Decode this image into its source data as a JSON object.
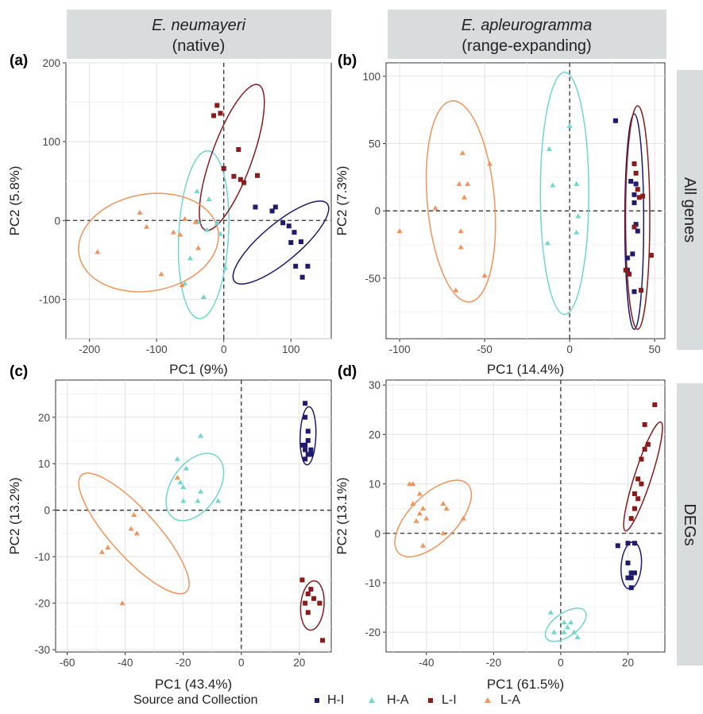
{
  "strips": {
    "col1": {
      "species": "E. neumayeri",
      "note": "(native)"
    },
    "col2": {
      "species": "E. apleurogramma",
      "note": "(range-expanding)"
    },
    "row1": "All genes",
    "row2": "DEGs"
  },
  "legend": {
    "title": "Source and Collection",
    "items": [
      {
        "label": "H-I",
        "color": "#1f1a6e",
        "shape": "square"
      },
      {
        "label": "H-A",
        "color": "#6fd6d0",
        "shape": "triangle"
      },
      {
        "label": "L-I",
        "color": "#8b1a1a",
        "shape": "square"
      },
      {
        "label": "L-A",
        "color": "#f2935a",
        "shape": "triangle"
      }
    ]
  },
  "colors": {
    "H-I": "#1f1a6e",
    "H-A": "#6fd6d0",
    "L-I": "#8b1a1a",
    "L-A": "#f2935a",
    "panel_bg": "#ebebeb",
    "strip_bg": "#d9dcdc"
  },
  "chart_data": [
    {
      "type": "scatter",
      "panel_label": "(a)",
      "xlabel": "PC1 (9%)",
      "ylabel": "PC2 (5.8%)",
      "xlim": [
        -235,
        160
      ],
      "ylim": [
        -150,
        200
      ],
      "xticks": [
        -200,
        -100,
        0,
        100
      ],
      "yticks": [
        -100,
        0,
        100,
        200
      ],
      "grid": true,
      "series": [
        {
          "name": "H-I",
          "points": [
            [
              47,
              17
            ],
            [
              72,
              12
            ],
            [
              77,
              17
            ],
            [
              97,
              -7
            ],
            [
              105,
              -15
            ],
            [
              88,
              -3
            ],
            [
              100,
              -28
            ],
            [
              115,
              -27
            ],
            [
              107,
              -58
            ],
            [
              125,
              -58
            ],
            [
              117,
              -72
            ]
          ]
        },
        {
          "name": "H-A",
          "points": [
            [
              -22,
              27
            ],
            [
              -40,
              37
            ],
            [
              -38,
              -2
            ],
            [
              -25,
              -12
            ],
            [
              -5,
              -17
            ],
            [
              -50,
              -48
            ],
            [
              -30,
              -97
            ],
            [
              -58,
              -80
            ],
            [
              2,
              -60
            ],
            [
              -10,
              -3
            ]
          ]
        },
        {
          "name": "L-I",
          "points": [
            [
              -15,
              133
            ],
            [
              -10,
              146
            ],
            [
              -5,
              136
            ],
            [
              22,
              90
            ],
            [
              0,
              66
            ],
            [
              15,
              56
            ],
            [
              30,
              48
            ],
            [
              25,
              52
            ],
            [
              50,
              57
            ]
          ]
        },
        {
          "name": "L-A",
          "points": [
            [
              -188,
              -40
            ],
            [
              -125,
              10
            ],
            [
              -115,
              -8
            ],
            [
              -93,
              -68
            ],
            [
              -65,
              -18
            ],
            [
              -62,
              -82
            ],
            [
              -58,
              2
            ],
            [
              -42,
              -2
            ],
            [
              -38,
              -35
            ],
            [
              -75,
              -15
            ]
          ]
        }
      ],
      "ellipses": [
        {
          "name": "H-I",
          "cx": 85,
          "cy": -28,
          "rx": 90,
          "ry": 28,
          "angle": -40
        },
        {
          "name": "H-A",
          "cx": -30,
          "cy": -18,
          "rx": 125,
          "ry": 37,
          "angle": -87
        },
        {
          "name": "L-I",
          "cx": 12,
          "cy": 80,
          "rx": 115,
          "ry": 30,
          "angle": -70
        },
        {
          "name": "L-A",
          "cx": -112,
          "cy": -28,
          "rx": 105,
          "ry": 72,
          "angle": -10
        }
      ]
    },
    {
      "type": "scatter",
      "panel_label": "(b)",
      "xlabel": "PC1 (14.4%)",
      "ylabel": "PC2 (7.3%)",
      "xlim": [
        -108,
        56
      ],
      "ylim": [
        -95,
        110
      ],
      "xticks": [
        -100,
        -50,
        0,
        50
      ],
      "yticks": [
        -50,
        0,
        50,
        100
      ],
      "grid": true,
      "series": [
        {
          "name": "H-I",
          "points": [
            [
              27,
              67
            ],
            [
              36,
              22
            ],
            [
              39,
              20
            ],
            [
              38,
              12
            ],
            [
              38,
              6
            ],
            [
              39,
              -10
            ],
            [
              40,
              -15
            ],
            [
              37,
              -32
            ],
            [
              34,
              -35
            ],
            [
              34,
              -44
            ],
            [
              38,
              -60
            ]
          ]
        },
        {
          "name": "H-A",
          "points": [
            [
              -12,
              46
            ],
            [
              -10,
              19
            ],
            [
              0,
              63
            ],
            [
              4,
              20
            ],
            [
              5,
              -4
            ],
            [
              4,
              -16
            ],
            [
              -13,
              -24
            ]
          ]
        },
        {
          "name": "L-I",
          "points": [
            [
              38,
              35
            ],
            [
              39,
              28
            ],
            [
              40,
              16
            ],
            [
              41,
              10
            ],
            [
              43,
              11
            ],
            [
              38,
              -12
            ],
            [
              33,
              -44
            ],
            [
              35,
              -47
            ],
            [
              48,
              -33
            ],
            [
              42,
              -59
            ]
          ]
        },
        {
          "name": "L-A",
          "points": [
            [
              -63,
              43
            ],
            [
              -47,
              35
            ],
            [
              -65,
              20
            ],
            [
              -60,
              20
            ],
            [
              -62,
              10
            ],
            [
              -79,
              2
            ],
            [
              -64,
              -15
            ],
            [
              -64,
              -27
            ],
            [
              -67,
              -59
            ],
            [
              -50,
              -48
            ],
            [
              -100,
              -15
            ]
          ]
        }
      ],
      "ellipses": [
        {
          "name": "H-I",
          "cx": 38,
          "cy": -8,
          "rx": 7,
          "ry": 80,
          "angle": 0
        },
        {
          "name": "H-A",
          "cx": -3,
          "cy": 13,
          "rx": 18,
          "ry": 90,
          "angle": 0
        },
        {
          "name": "L-I",
          "cx": 40,
          "cy": -5,
          "rx": 9,
          "ry": 83,
          "angle": 0
        },
        {
          "name": "L-A",
          "cx": -64,
          "cy": 7,
          "rx": 25,
          "ry": 75,
          "angle": -5
        }
      ]
    },
    {
      "type": "scatter",
      "panel_label": "(c)",
      "xlabel": "PC1 (43.4%)",
      "ylabel": "PC2 (13.2%)",
      "xlim": [
        -64,
        31
      ],
      "ylim": [
        -30.5,
        28
      ],
      "xticks": [
        -60,
        -40,
        -20,
        0,
        20
      ],
      "yticks": [
        -30,
        -20,
        -10,
        0,
        10,
        20
      ],
      "grid": true,
      "series": [
        {
          "name": "H-I",
          "points": [
            [
              22,
              23
            ],
            [
              22,
              20
            ],
            [
              23,
              17
            ],
            [
              23,
              15
            ],
            [
              22,
              14
            ],
            [
              22,
              13
            ],
            [
              24,
              13
            ],
            [
              23,
              12
            ],
            [
              22,
              11
            ],
            [
              24,
              12
            ],
            [
              21,
              14
            ]
          ]
        },
        {
          "name": "H-A",
          "points": [
            [
              -22,
              11
            ],
            [
              -14,
              16
            ],
            [
              -19,
              9
            ],
            [
              -21,
              6
            ],
            [
              -20,
              5
            ],
            [
              -14,
              4
            ],
            [
              -15,
              2
            ],
            [
              -20,
              2
            ],
            [
              -8,
              2
            ]
          ]
        },
        {
          "name": "L-I",
          "points": [
            [
              21,
              -15
            ],
            [
              24,
              -17
            ],
            [
              23,
              -18
            ],
            [
              25,
              -19
            ],
            [
              22,
              -20
            ],
            [
              27,
              -20
            ],
            [
              23,
              -22
            ],
            [
              28,
              -28
            ]
          ]
        },
        {
          "name": "L-A",
          "points": [
            [
              -22,
              7
            ],
            [
              -37,
              -1
            ],
            [
              -38,
              -4
            ],
            [
              -36,
              -5
            ],
            [
              -46,
              -8
            ],
            [
              -48,
              -9
            ],
            [
              -41,
              -20
            ]
          ]
        }
      ],
      "ellipses": [
        {
          "name": "H-I",
          "cx": 23,
          "cy": 16,
          "rx": 10,
          "ry": 2.7,
          "angle": -88
        },
        {
          "name": "H-A",
          "cx": -16,
          "cy": 5,
          "rx": 13,
          "ry": 8,
          "angle": -55
        },
        {
          "name": "L-I",
          "cx": 24.5,
          "cy": -20.5,
          "rx": 8.5,
          "ry": 4,
          "angle": -85
        },
        {
          "name": "L-A",
          "cx": -37,
          "cy": -5,
          "rx": 27,
          "ry": 8,
          "angle": 48
        }
      ]
    },
    {
      "type": "scatter",
      "panel_label": "(d)",
      "xlabel": "PC1 (61.5%)",
      "ylabel": "PC2 (13.1%)",
      "xlim": [
        -52,
        31
      ],
      "ylim": [
        -24,
        31
      ],
      "xticks": [
        -40,
        -20,
        0,
        20
      ],
      "yticks": [
        -20,
        -10,
        0,
        10,
        20,
        30
      ],
      "grid": true,
      "series": [
        {
          "name": "H-I",
          "points": [
            [
              17,
              -2.5
            ],
            [
              20,
              -2
            ],
            [
              22,
              -2
            ],
            [
              20,
              -6
            ],
            [
              21,
              -8
            ],
            [
              22,
              -8
            ],
            [
              21,
              -9
            ],
            [
              20,
              -9
            ],
            [
              21,
              -11
            ]
          ]
        },
        {
          "name": "H-A",
          "points": [
            [
              -3,
              -16
            ],
            [
              -2,
              -20
            ],
            [
              1,
              -18
            ],
            [
              2,
              -19
            ],
            [
              1,
              -20
            ],
            [
              3,
              -18
            ],
            [
              4,
              -20
            ],
            [
              5,
              -21
            ]
          ]
        },
        {
          "name": "L-I",
          "points": [
            [
              28,
              26
            ],
            [
              25,
              22
            ],
            [
              26,
              18
            ],
            [
              25,
              17
            ],
            [
              24,
              15
            ],
            [
              23,
              11
            ],
            [
              24,
              10
            ],
            [
              22,
              8
            ],
            [
              23,
              7
            ],
            [
              22,
              5
            ],
            [
              21,
              3
            ]
          ]
        },
        {
          "name": "L-A",
          "points": [
            [
              -45,
              10
            ],
            [
              -44,
              10
            ],
            [
              -42,
              8
            ],
            [
              -44,
              6
            ],
            [
              -35,
              6
            ],
            [
              -41,
              5
            ],
            [
              -34,
              5
            ],
            [
              -42,
              4
            ],
            [
              -40,
              3
            ],
            [
              -43,
              2.5
            ],
            [
              -29,
              3
            ],
            [
              -35,
              0
            ],
            [
              -41,
              -2.5
            ]
          ]
        }
      ],
      "ellipses": [
        {
          "name": "H-I",
          "cx": 21,
          "cy": -6.5,
          "rx": 7,
          "ry": 3,
          "angle": -85
        },
        {
          "name": "H-A",
          "cx": 1.5,
          "cy": -18.5,
          "rx": 7,
          "ry": 3.5,
          "angle": -35
        },
        {
          "name": "L-I",
          "cx": 24.5,
          "cy": 11.5,
          "rx": 17,
          "ry": 2.5,
          "angle": -72
        },
        {
          "name": "L-A",
          "cx": -38,
          "cy": 3,
          "rx": 14.5,
          "ry": 7,
          "angle": -45
        }
      ]
    }
  ]
}
